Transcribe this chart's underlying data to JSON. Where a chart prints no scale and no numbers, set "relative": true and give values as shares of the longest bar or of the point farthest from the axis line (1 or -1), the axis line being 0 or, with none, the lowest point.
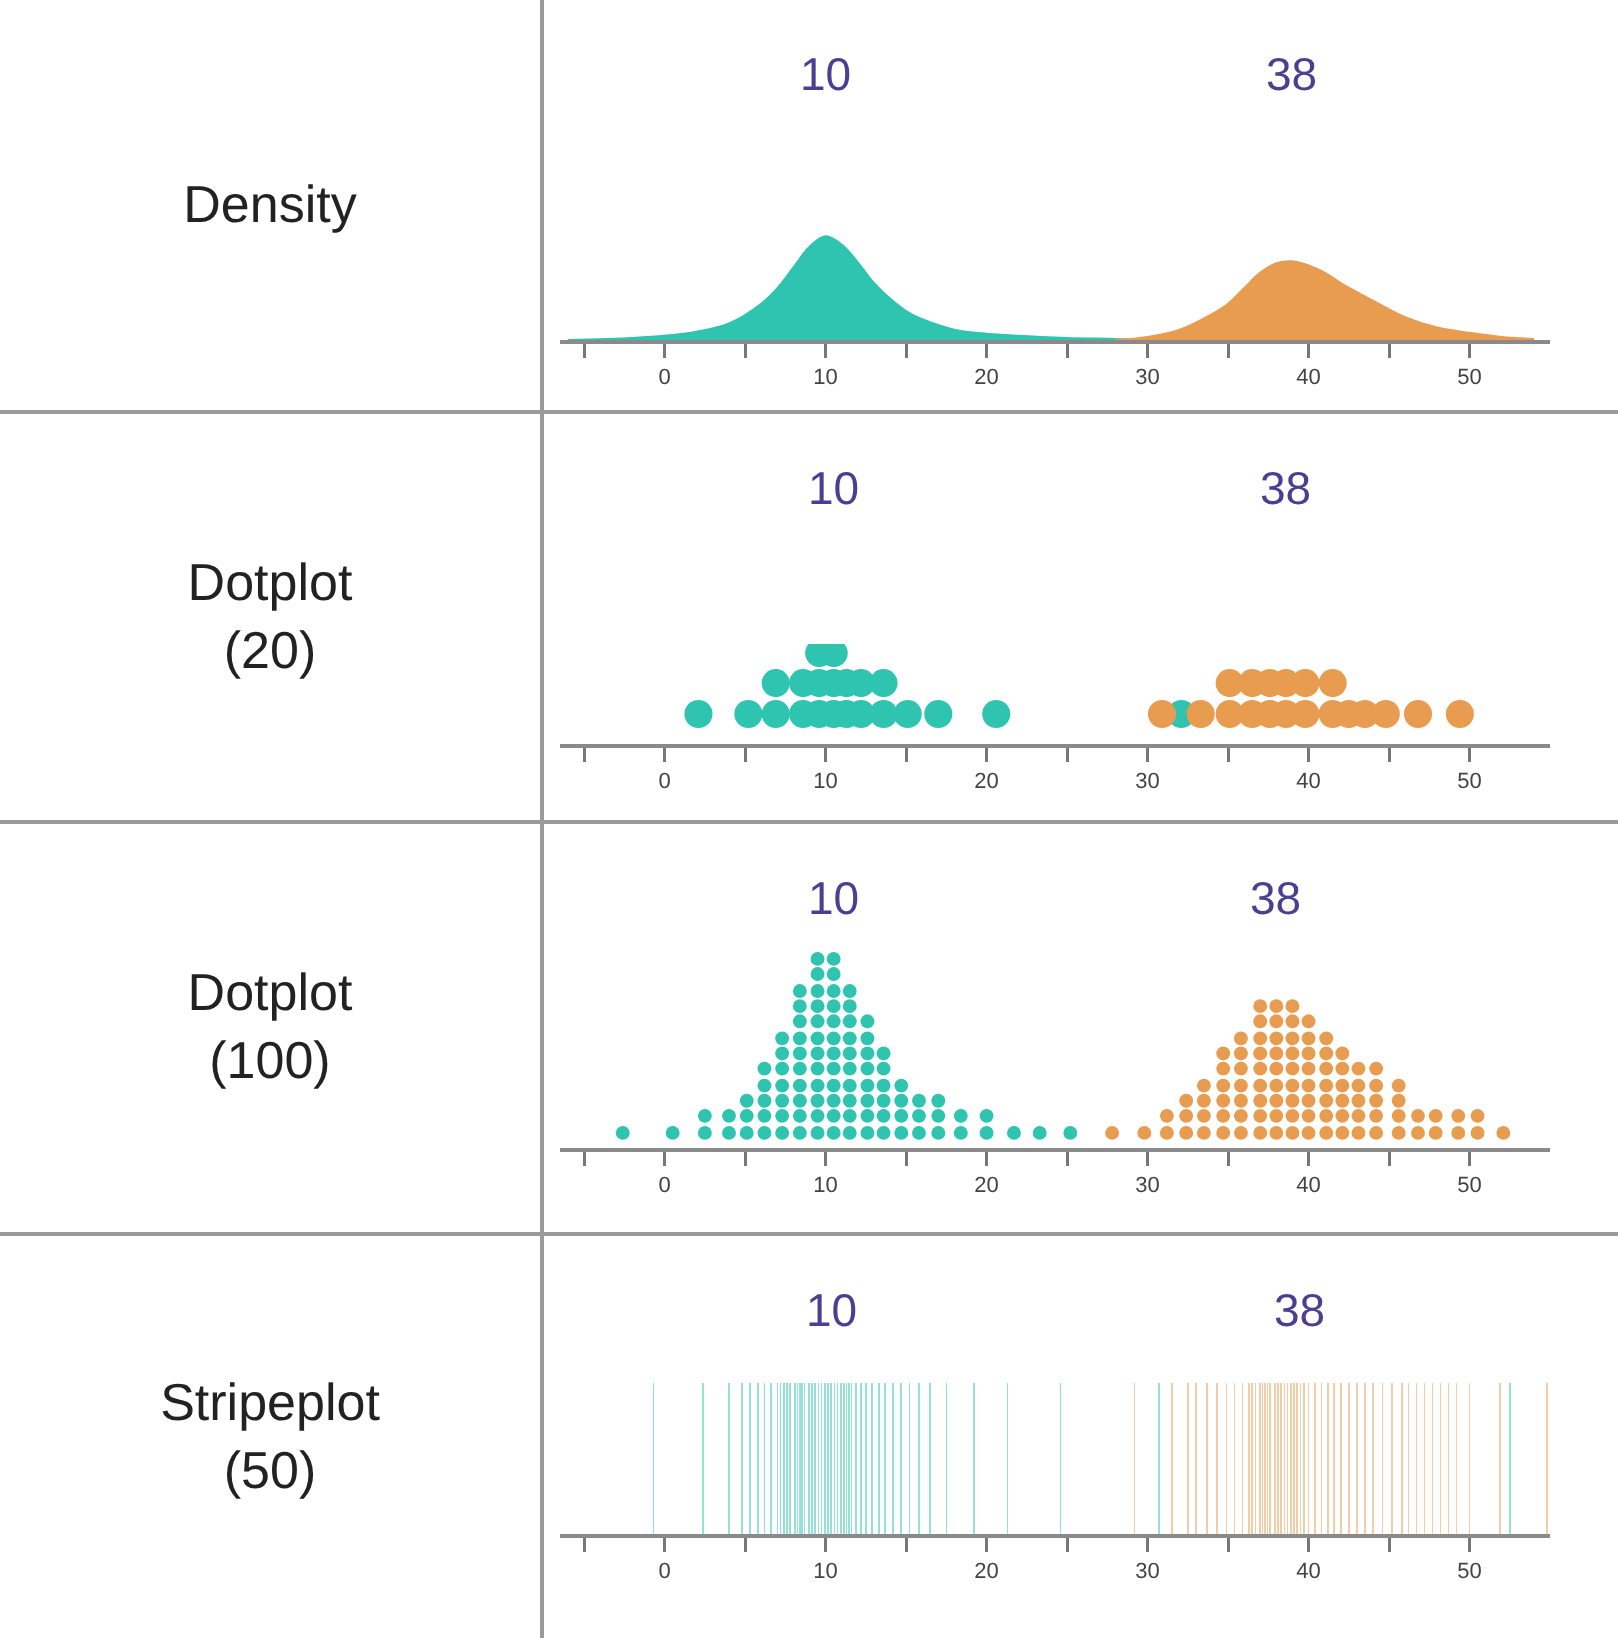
{
  "chart_data": [
    {
      "type": "area",
      "title": "Density",
      "relative": true,
      "xlim": [
        -6.5,
        55
      ],
      "xticks": [
        {
          "value": -5,
          "label": null
        },
        0,
        {
          "value": 5,
          "label": null
        },
        10,
        {
          "value": 15,
          "label": null
        },
        20,
        {
          "value": 25,
          "label": null
        },
        30,
        {
          "value": 35,
          "label": null
        },
        40,
        {
          "value": 45,
          "label": null
        },
        50
      ],
      "annotations": [
        "10",
        "38"
      ],
      "series": [
        {
          "color": "#2ec4b0",
          "x": [
            -6,
            -2,
            0,
            2,
            4,
            6,
            7,
            8,
            9,
            10,
            11,
            12,
            13,
            14,
            15,
            16,
            18,
            20,
            22,
            25,
            28,
            30
          ],
          "values": [
            0,
            0.02,
            0.04,
            0.08,
            0.16,
            0.35,
            0.5,
            0.7,
            0.9,
            1,
            0.92,
            0.75,
            0.55,
            0.4,
            0.28,
            0.2,
            0.1,
            0.06,
            0.04,
            0.02,
            0.01,
            0
          ]
        },
        {
          "color": "#e89c50",
          "x": [
            28,
            30,
            32,
            34,
            35,
            36,
            37,
            38,
            39,
            40,
            41,
            42,
            44,
            46,
            48,
            50,
            52,
            54
          ],
          "values": [
            0,
            0.03,
            0.1,
            0.25,
            0.35,
            0.5,
            0.65,
            0.74,
            0.76,
            0.72,
            0.65,
            0.55,
            0.38,
            0.22,
            0.12,
            0.07,
            0.03,
            0.01
          ]
        }
      ]
    },
    {
      "type": "scatter",
      "title": "Dotplot\n(20)",
      "relative": true,
      "marker": "circle",
      "xlim": [
        -6.5,
        55
      ],
      "xticks": [
        {
          "value": -5,
          "label": null
        },
        0,
        {
          "value": 5,
          "label": null
        },
        10,
        {
          "value": 15,
          "label": null
        },
        20,
        {
          "value": 25,
          "label": null
        },
        30,
        {
          "value": 35,
          "label": null
        },
        40,
        {
          "value": 45,
          "label": null
        },
        50
      ],
      "annotations": [
        "10",
        "38"
      ],
      "series": [
        {
          "color": "#2ec4b0",
          "x": [
            2.1,
            5.2,
            6.9,
            8.6,
            9.6,
            10.5,
            11.3,
            12.2,
            13.6,
            15.1,
            17,
            20.6,
            32.1,
            6.9,
            8.6,
            9.6,
            10.5,
            11.3,
            12.2,
            13.6,
            9.6,
            10.5
          ],
          "values": [
            0.33,
            0.33,
            0.33,
            0.33,
            0.33,
            0.33,
            0.33,
            0.33,
            0.33,
            0.33,
            0.33,
            0.33,
            0.33,
            0.67,
            0.67,
            0.67,
            0.67,
            0.67,
            0.67,
            0.67,
            1,
            1
          ]
        },
        {
          "color": "#e89c50",
          "x": [
            30.9,
            33.3,
            35.1,
            36.5,
            37.6,
            38.6,
            39.8,
            41.5,
            42.5,
            43.5,
            44.8,
            46.8,
            49.4,
            35.1,
            36.5,
            37.6,
            38.6,
            39.8,
            41.5
          ],
          "values": [
            0.33,
            0.33,
            0.33,
            0.33,
            0.33,
            0.33,
            0.33,
            0.33,
            0.33,
            0.33,
            0.33,
            0.33,
            0.33,
            0.67,
            0.67,
            0.67,
            0.67,
            0.67,
            0.67
          ]
        }
      ]
    },
    {
      "type": "scatter",
      "title": "Dotplot\n(100)",
      "relative": true,
      "marker": "circle",
      "xlim": [
        -6.5,
        55
      ],
      "xticks": [
        {
          "value": -5,
          "label": null
        },
        0,
        {
          "value": 5,
          "label": null
        },
        10,
        {
          "value": 15,
          "label": null
        },
        20,
        {
          "value": 25,
          "label": null
        },
        30,
        {
          "value": 35,
          "label": null
        },
        40,
        {
          "value": 45,
          "label": null
        },
        50
      ],
      "annotations": [
        "10",
        "38"
      ],
      "series": [
        {
          "color": "#2ec4b0",
          "x": [
            -2.6,
            0.5,
            2.5,
            2.5,
            4,
            4,
            5.1,
            5.1,
            5.1,
            6.2,
            6.2,
            6.2,
            6.2,
            6.2,
            7.3,
            7.3,
            7.3,
            7.3,
            7.3,
            7.3,
            7.3,
            8.4,
            8.4,
            8.4,
            8.4,
            8.4,
            8.4,
            8.4,
            8.4,
            8.4,
            8.4,
            9.5,
            9.5,
            9.5,
            9.5,
            9.5,
            9.5,
            9.5,
            9.5,
            9.5,
            9.5,
            9.5,
            9.5,
            10.5,
            10.5,
            10.5,
            10.5,
            10.5,
            10.5,
            10.5,
            10.5,
            10.5,
            10.5,
            10.5,
            10.5,
            11.5,
            11.5,
            11.5,
            11.5,
            11.5,
            11.5,
            11.5,
            11.5,
            11.5,
            11.5,
            12.6,
            12.6,
            12.6,
            12.6,
            12.6,
            12.6,
            12.6,
            12.6,
            13.6,
            13.6,
            13.6,
            13.6,
            13.6,
            13.6,
            14.7,
            14.7,
            14.7,
            14.7,
            15.8,
            15.8,
            15.8,
            17,
            17,
            17,
            18.4,
            18.4,
            20,
            20,
            21.7,
            23.3,
            25.2
          ],
          "values": [
            0.08,
            0.08,
            0.08,
            0.17,
            0.08,
            0.17,
            0.08,
            0.17,
            0.25,
            0.08,
            0.17,
            0.25,
            0.33,
            0.42,
            0.08,
            0.17,
            0.25,
            0.33,
            0.42,
            0.5,
            0.58,
            0.08,
            0.17,
            0.25,
            0.33,
            0.42,
            0.5,
            0.58,
            0.67,
            0.75,
            0.83,
            0.08,
            0.17,
            0.25,
            0.33,
            0.42,
            0.5,
            0.58,
            0.67,
            0.75,
            0.83,
            0.92,
            1,
            0.08,
            0.17,
            0.25,
            0.33,
            0.42,
            0.5,
            0.58,
            0.67,
            0.75,
            0.83,
            0.92,
            1,
            0.08,
            0.17,
            0.25,
            0.33,
            0.42,
            0.5,
            0.58,
            0.67,
            0.75,
            0.83,
            0.08,
            0.17,
            0.25,
            0.33,
            0.42,
            0.5,
            0.58,
            0.67,
            0.08,
            0.17,
            0.25,
            0.33,
            0.42,
            0.5,
            0.08,
            0.17,
            0.25,
            0.33,
            0.08,
            0.17,
            0.25,
            0.08,
            0.17,
            0.25,
            0.08,
            0.17,
            0.08,
            0.17,
            0.08,
            0.08,
            0.08
          ]
        },
        {
          "color": "#e89c50",
          "x": [
            27.8,
            29.8,
            31.2,
            31.2,
            32.4,
            32.4,
            32.4,
            33.5,
            33.5,
            33.5,
            33.5,
            34.7,
            34.7,
            34.7,
            34.7,
            34.7,
            34.7,
            35.8,
            35.8,
            35.8,
            35.8,
            35.8,
            35.8,
            35.8,
            37,
            37,
            37,
            37,
            37,
            37,
            37,
            37,
            37,
            38,
            38,
            38,
            38,
            38,
            38,
            38,
            38,
            38,
            39,
            39,
            39,
            39,
            39,
            39,
            39,
            39,
            39,
            40,
            40,
            40,
            40,
            40,
            40,
            40,
            40,
            41.1,
            41.1,
            41.1,
            41.1,
            41.1,
            41.1,
            41.1,
            42.1,
            42.1,
            42.1,
            42.1,
            42.1,
            42.1,
            43.1,
            43.1,
            43.1,
            43.1,
            43.1,
            44.2,
            44.2,
            44.2,
            44.2,
            44.2,
            45.6,
            45.6,
            45.6,
            45.6,
            46.8,
            46.8,
            47.9,
            47.9,
            49.3,
            49.3,
            50.5,
            50.5,
            52.1
          ],
          "values": [
            0.08,
            0.08,
            0.08,
            0.17,
            0.08,
            0.17,
            0.25,
            0.08,
            0.17,
            0.25,
            0.33,
            0.08,
            0.17,
            0.25,
            0.33,
            0.42,
            0.5,
            0.08,
            0.17,
            0.25,
            0.33,
            0.42,
            0.5,
            0.58,
            0.08,
            0.17,
            0.25,
            0.33,
            0.42,
            0.5,
            0.58,
            0.67,
            0.75,
            0.08,
            0.17,
            0.25,
            0.33,
            0.42,
            0.5,
            0.58,
            0.67,
            0.75,
            0.08,
            0.17,
            0.25,
            0.33,
            0.42,
            0.5,
            0.58,
            0.67,
            0.75,
            0.08,
            0.17,
            0.25,
            0.33,
            0.42,
            0.5,
            0.58,
            0.67,
            0.08,
            0.17,
            0.25,
            0.33,
            0.42,
            0.5,
            0.58,
            0.08,
            0.17,
            0.25,
            0.33,
            0.42,
            0.5,
            0.08,
            0.17,
            0.25,
            0.33,
            0.42,
            0.08,
            0.17,
            0.25,
            0.33,
            0.42,
            0.08,
            0.17,
            0.25,
            0.33,
            0.08,
            0.17,
            0.08,
            0.17,
            0.08,
            0.17,
            0.08,
            0.17,
            0.08
          ]
        }
      ]
    },
    {
      "type": "bar",
      "title": "Stripeplot\n(50)",
      "relative": true,
      "xlim": [
        -6.5,
        55
      ],
      "xticks": [
        {
          "value": -5,
          "label": null
        },
        0,
        {
          "value": 5,
          "label": null
        },
        10,
        {
          "value": 15,
          "label": null
        },
        20,
        {
          "value": 25,
          "label": null
        },
        30,
        {
          "value": 35,
          "label": null
        },
        40,
        {
          "value": 45,
          "label": null
        },
        50
      ],
      "annotations": [
        "10",
        "38"
      ],
      "series": [
        {
          "color": "#2ec4b0",
          "x": [
            -0.7,
            2.4,
            4.0,
            4.8,
            5.3,
            5.8,
            6.2,
            6.6,
            7.0,
            7.2,
            7.4,
            7.6,
            7.8,
            8.1,
            8.25,
            8.4,
            8.55,
            8.7,
            8.95,
            9.15,
            9.35,
            9.55,
            9.75,
            9.95,
            10.15,
            10.35,
            10.55,
            10.75,
            10.95,
            11.15,
            11.3,
            11.45,
            11.6,
            11.9,
            12.2,
            12.5,
            12.9,
            13.3,
            13.7,
            14.2,
            14.7,
            15.2,
            15.8,
            16.5,
            17.5,
            19.2,
            21.3,
            24.6,
            30.7,
            52.5
          ],
          "values": [
            1,
            1,
            1,
            1,
            1,
            1,
            1,
            1,
            1,
            1,
            1,
            1,
            1,
            1,
            1,
            1,
            1,
            1,
            1,
            1,
            1,
            1,
            1,
            1,
            1,
            1,
            1,
            1,
            1,
            1,
            1,
            1,
            1,
            1,
            1,
            1,
            1,
            1,
            1,
            1,
            1,
            1,
            1,
            1,
            1,
            1,
            1,
            1,
            1,
            1
          ]
        },
        {
          "color": "#e89c50",
          "x": [
            29.2,
            31.5,
            32.5,
            33.0,
            33.7,
            34.3,
            34.9,
            35.4,
            35.9,
            36.3,
            36.5,
            36.7,
            37.0,
            37.15,
            37.3,
            37.45,
            37.6,
            37.9,
            38.1,
            38.3,
            38.5,
            38.7,
            38.9,
            39.1,
            39.3,
            39.5,
            39.7,
            40.0,
            40.4,
            40.8,
            41.2,
            41.6,
            42.0,
            42.5,
            43.0,
            43.5,
            44.0,
            44.6,
            45.2,
            45.8,
            46.2,
            46.7,
            47.2,
            47.7,
            48.2,
            48.7,
            49.2,
            50.0,
            51.9,
            54.8
          ],
          "values": [
            1,
            1,
            1,
            1,
            1,
            1,
            1,
            1,
            1,
            1,
            1,
            1,
            1,
            1,
            1,
            1,
            1,
            1,
            1,
            1,
            1,
            1,
            1,
            1,
            1,
            1,
            1,
            1,
            1,
            1,
            1,
            1,
            1,
            1,
            1,
            1,
            1,
            1,
            1,
            1,
            1,
            1,
            1,
            1,
            1,
            1,
            1,
            1,
            1,
            1
          ]
        }
      ]
    }
  ]
}
